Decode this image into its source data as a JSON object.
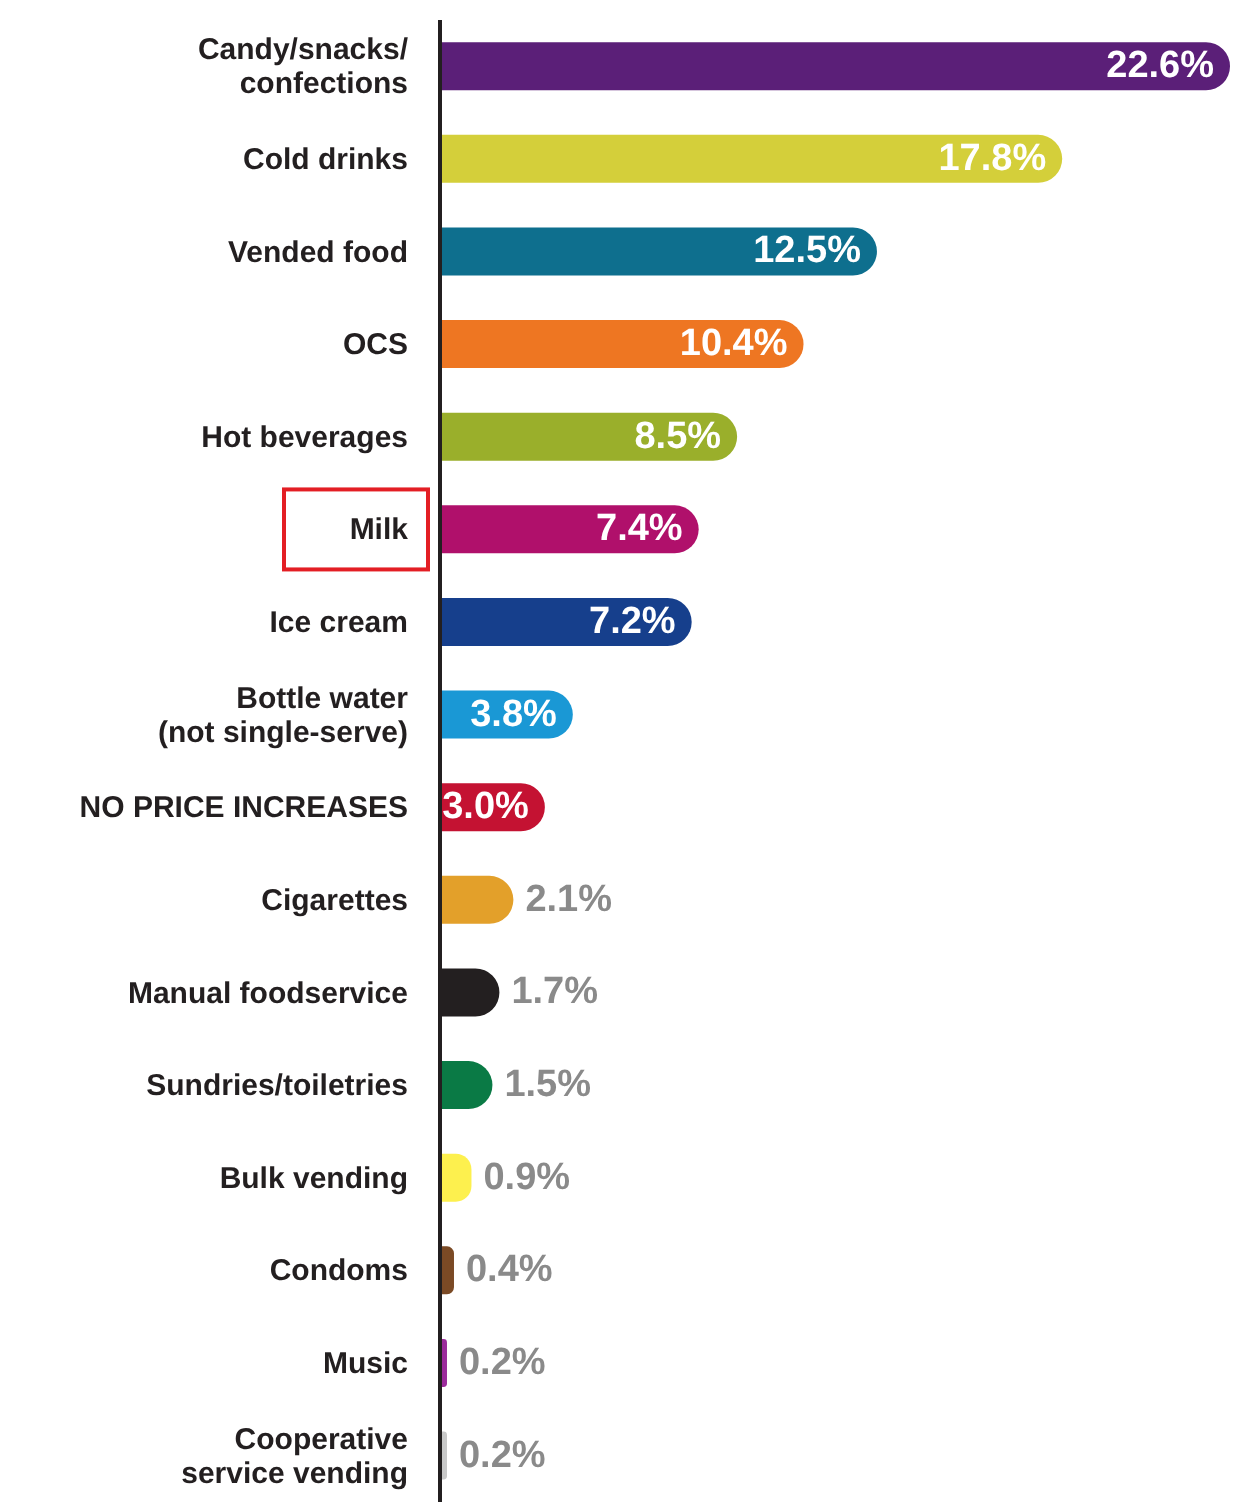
{
  "chart_data": {
    "type": "bar",
    "orientation": "horizontal",
    "categories": [
      "Candy/snacks/\nconfections",
      "Cold drinks",
      "Vended food",
      "OCS",
      "Hot beverages",
      "Milk",
      "Ice cream",
      "Bottle water\n(not single-serve)",
      "NO PRICE INCREASES",
      "Cigarettes",
      "Manual foodservice",
      "Sundries/toiletries",
      "Bulk vending",
      "Condoms",
      "Music",
      "Cooperative\nservice vending"
    ],
    "values": [
      22.6,
      17.8,
      12.5,
      10.4,
      8.5,
      7.4,
      7.2,
      3.8,
      3.0,
      2.1,
      1.7,
      1.5,
      0.9,
      0.4,
      0.2,
      0.2
    ],
    "colors": [
      "#5b1f78",
      "#d4cf3a",
      "#0e6f8e",
      "#ee7622",
      "#9aaf2b",
      "#b0106b",
      "#163f8c",
      "#1a98d5",
      "#c41232",
      "#e3a02a",
      "#231f20",
      "#0a7a45",
      "#fdf04e",
      "#7b4a25",
      "#9b2a9b",
      "#c8c8c8"
    ],
    "value_labels": [
      "22.6%",
      "17.8%",
      "12.5%",
      "10.4%",
      "8.5%",
      "7.4%",
      "7.2%",
      "3.8%",
      "3.0%",
      "2.1%",
      "1.7%",
      "1.5%",
      "0.9%",
      "0.4%",
      "0.2%",
      "0.2%"
    ]
  }
}
